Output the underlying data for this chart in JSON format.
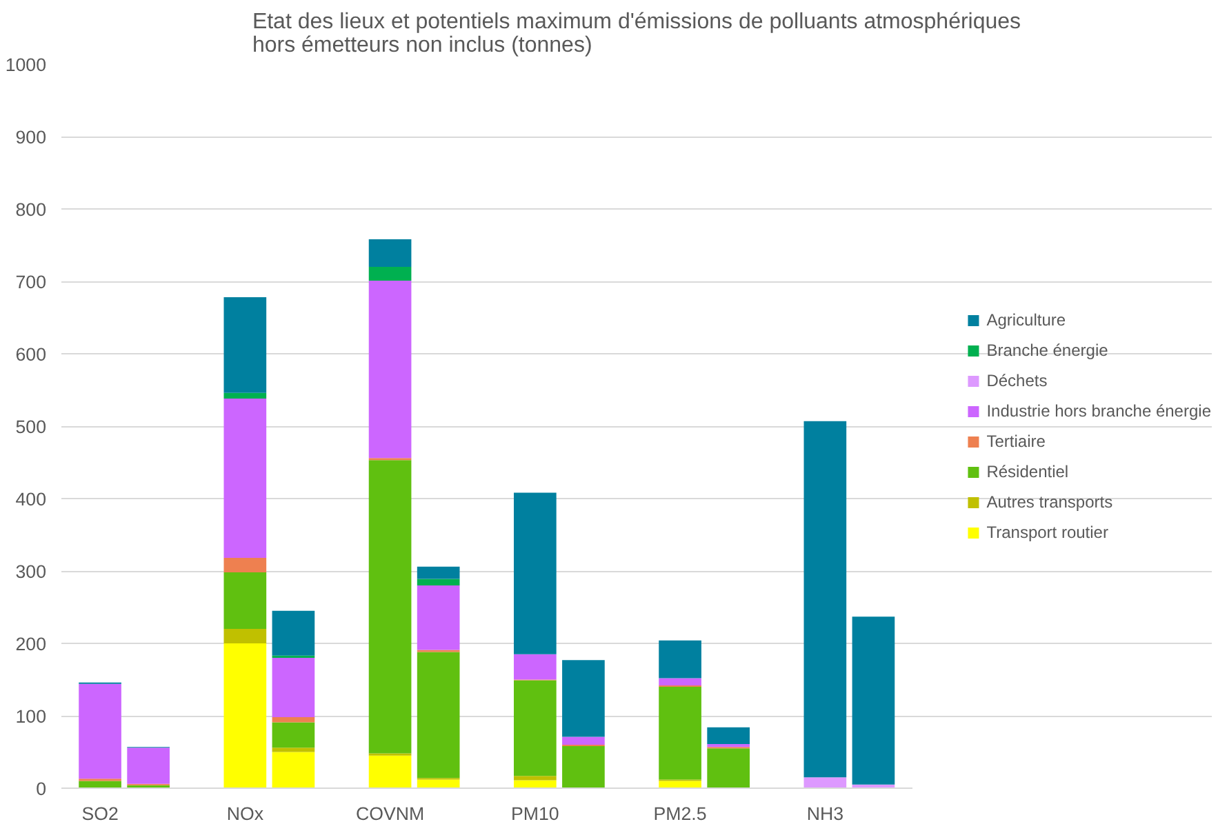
{
  "chart_data": {
    "type": "bar",
    "stacked": true,
    "title": "Etat des lieux et potentiels maximum d'émissions de polluants atmosphériques\nhors émetteurs non inclus (tonnes)",
    "categories": [
      "SO2",
      null,
      "NOx",
      null,
      "COVNM",
      null,
      "PM10",
      null,
      "PM2.5",
      null,
      "NH3",
      null
    ],
    "series": [
      {
        "name": "Transport routier",
        "color": "#ffff00",
        "values": [
          0,
          0,
          200,
          50,
          45,
          12,
          11,
          null,
          10,
          null,
          0,
          0
        ]
      },
      {
        "name": "Autres transports",
        "color": "#c0c000",
        "values": [
          null,
          1,
          20,
          6,
          3,
          2,
          6,
          1,
          2,
          1,
          0,
          0
        ]
      },
      {
        "name": "Résidentiel",
        "color": "#60c010",
        "values": [
          10,
          3,
          78,
          35,
          405,
          174,
          132,
          57,
          128,
          54,
          0,
          0
        ]
      },
      {
        "name": "Tertiaire",
        "color": "#ee8050",
        "values": [
          3,
          2,
          20,
          7,
          3,
          3,
          1,
          2,
          2,
          2,
          0,
          0
        ]
      },
      {
        "name": "Industrie hors branche énergie",
        "color": "#cc66ff",
        "values": [
          131,
          50,
          220,
          82,
          245,
          89,
          35,
          11,
          10,
          4,
          0,
          0
        ]
      },
      {
        "name": "Déchets",
        "color": "#dd99ff",
        "values": [
          0,
          0,
          0,
          0,
          0,
          0,
          0,
          0,
          0,
          0,
          15,
          5
        ]
      },
      {
        "name": "Branche énergie",
        "color": "#00b050",
        "values": [
          0,
          0,
          8,
          3,
          19,
          9,
          0,
          0,
          0,
          0,
          0,
          0
        ]
      },
      {
        "name": "Agriculture",
        "color": "#00809f",
        "values": [
          2,
          1,
          132,
          62,
          38,
          17,
          223,
          106,
          52,
          23,
          492,
          232
        ]
      }
    ],
    "ylim": [
      0,
      1000
    ],
    "yticks": [
      0,
      100,
      200,
      300,
      400,
      500,
      600,
      700,
      800,
      900,
      1000
    ],
    "grid": "y",
    "legend": "right"
  }
}
